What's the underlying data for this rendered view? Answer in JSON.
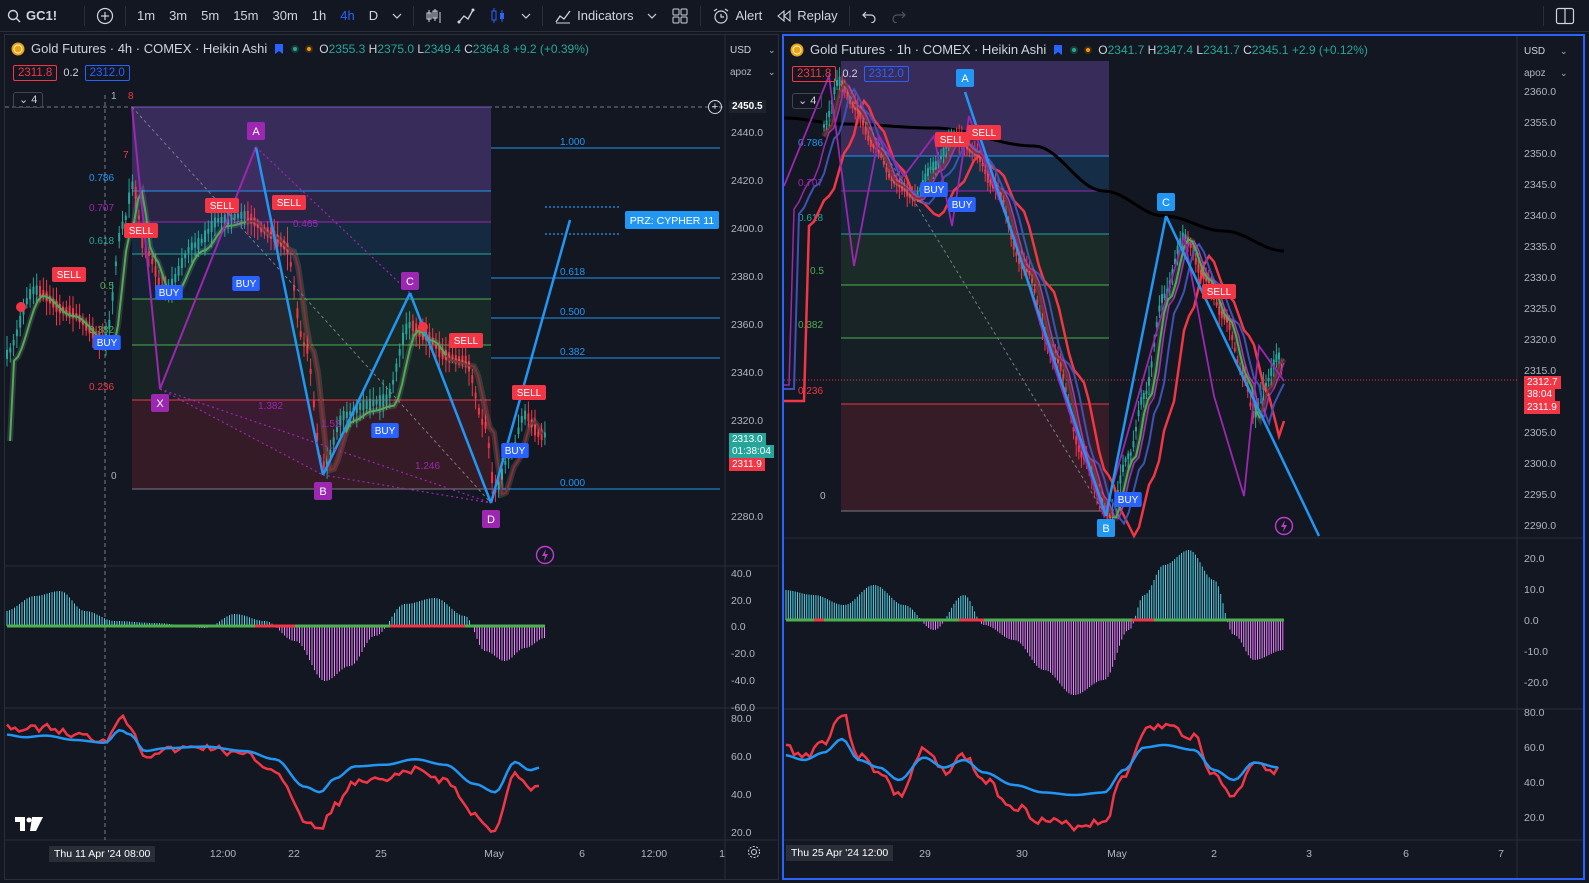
{
  "toolbar": {
    "symbol": "GC1!",
    "intervals": [
      "1m",
      "3m",
      "5m",
      "15m",
      "30m",
      "1h",
      "4h",
      "D"
    ],
    "active_interval": "4h",
    "indicators_label": "Indicators",
    "alert_label": "Alert",
    "replay_label": "Replay"
  },
  "left": {
    "title": "Gold Futures · 4h · COMEX · Heikin Ashi",
    "ohlc": {
      "o_lbl": "O",
      "o": "2355.3",
      "h_lbl": "H",
      "h": "2375.0",
      "l_lbl": "L",
      "l": "2349.4",
      "c_lbl": "C",
      "c": "2364.8",
      "chg": "+9.2 (+0.39%)"
    },
    "bid": "2311.8",
    "spread": "0.2",
    "ask": "2312.0",
    "layers": "4",
    "currency": "USD",
    "scale_mode": "apoz",
    "price_ticks": [
      "2440.0",
      "2420.0",
      "2400.0",
      "2380.0",
      "2360.0",
      "2340.0",
      "2320.0",
      "2280.0"
    ],
    "price_hl": "2450.5",
    "last_price": "2313.0",
    "countdown": "01:38:04",
    "bid_tag": "2311.9",
    "macd_ticks": [
      "40.0",
      "20.0",
      "0.0",
      "-20.0",
      "-40.0",
      "-60.0"
    ],
    "rsi_ticks": [
      "80.0",
      "60.0",
      "40.0",
      "20.0"
    ],
    "time_labels": [
      "8",
      "12:00",
      "22",
      "25",
      "May",
      "6",
      "12:00",
      "1"
    ],
    "time_hl": "Thu 11 Apr '24   08:00",
    "fib_left": [
      "1",
      "8",
      "7",
      "0.786",
      "0.707",
      "0.618",
      "0.5",
      "0.382",
      "0.236",
      "0"
    ],
    "fib_right": [
      "1.000",
      "0.618",
      "0.500",
      "0.382",
      "0.000"
    ],
    "prz_label": "PRZ: CYPHER 11",
    "pattern_points": [
      "X",
      "A",
      "B",
      "C",
      "D"
    ],
    "ratios": [
      "1.382",
      "0.465",
      "1.52",
      "1.246"
    ],
    "signals": {
      "sell": "SELL",
      "buy": "BUY"
    }
  },
  "right": {
    "title": "Gold Futures · 1h · COMEX · Heikin Ashi",
    "ohlc": {
      "o_lbl": "O",
      "o": "2341.7",
      "h_lbl": "H",
      "h": "2347.4",
      "l_lbl": "L",
      "l": "2341.7",
      "c_lbl": "C",
      "c": "2345.1",
      "chg": "+2.9 (+0.12%)"
    },
    "bid": "2311.8",
    "spread": "0.2",
    "ask": "2312.0",
    "layers": "4",
    "currency": "USD",
    "scale_mode": "apoz",
    "price_ticks": [
      "2360.0",
      "2355.0",
      "2350.0",
      "2345.0",
      "2340.0",
      "2335.0",
      "2330.0",
      "2325.0",
      "2320.0",
      "2315.0",
      "2305.0",
      "2300.0",
      "2295.0",
      "2290.0"
    ],
    "last_price": "2312.7",
    "countdown": "38:04",
    "bid_tag": "2311.9",
    "macd_ticks": [
      "20.0",
      "10.0",
      "0.0",
      "-10.0",
      "-20.0"
    ],
    "rsi_ticks": [
      "80.0",
      "60.0",
      "40.0",
      "20.0"
    ],
    "time_labels": [
      "29",
      "30",
      "May",
      "2",
      "3",
      "6",
      "7"
    ],
    "time_hl": "Thu 25 Apr '24   12:00",
    "fib_left": [
      "0.786",
      "0.707",
      "0.618",
      "0.5",
      "0.382",
      "0.236",
      "0"
    ],
    "pattern_points": [
      "A",
      "B",
      "C"
    ],
    "signals": {
      "sell": "SELL",
      "buy": "BUY"
    }
  },
  "colors": {
    "accent": "#2962ff",
    "up": "#26a69a",
    "down": "#f23645",
    "pattern": "#9c27b0",
    "harmonic": "#2196f3"
  }
}
